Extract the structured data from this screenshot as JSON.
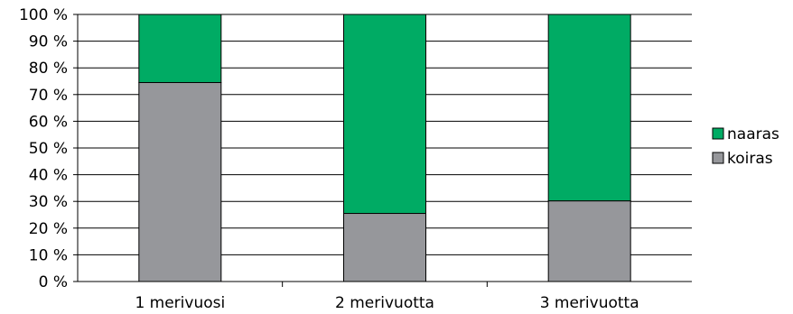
{
  "chart_data": {
    "type": "bar",
    "stacked": true,
    "percent_axis": true,
    "categories": [
      "1 merivuosi",
      "2 merivuotta",
      "3 merivuotta"
    ],
    "series": [
      {
        "name": "koiras",
        "color": "#96979b",
        "values": [
          74.5,
          25.5,
          30.2
        ]
      },
      {
        "name": "naaras",
        "color": "#00ab64",
        "values": [
          25.5,
          74.5,
          69.8
        ]
      }
    ],
    "y_ticks": [
      "0 %",
      "10 %",
      "20 %",
      "30 %",
      "40 %",
      "50 %",
      "60 %",
      "70 %",
      "80 %",
      "90 %",
      "100 %"
    ],
    "ylim": [
      0,
      100
    ],
    "grid": true,
    "legend": {
      "placement": "right",
      "order": [
        "naaras",
        "koiras"
      ]
    }
  }
}
